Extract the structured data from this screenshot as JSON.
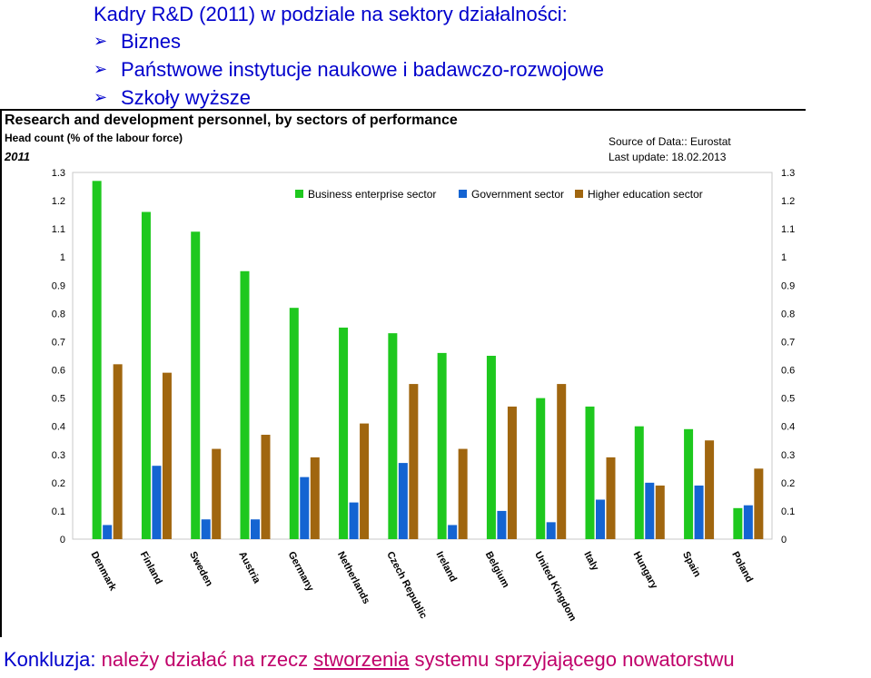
{
  "slide": {
    "title": "Kadry R&D (2011) w podziale na sektory działalności:",
    "bullets": [
      "Biznes",
      "Państwowe instytucje naukowe i badawczo-rozwojowe",
      "Szkoły wyższe"
    ],
    "conclusion_prefix": "Konkluzja: ",
    "conclusion_mid": "należy działać na rzecz ",
    "conclusion_underlined": "stworzenia",
    "conclusion_end": " systemu sprzyjającego nowatorstwu"
  },
  "figure": {
    "title": "Research and development personnel, by sectors of performance",
    "subtitle": "Head count (% of the labour force)",
    "year": "2011",
    "source_line1": "Source of Data:: Eurostat",
    "source_line2": "Last update: 18.02.2013"
  },
  "chart_data": {
    "type": "bar",
    "categories": [
      "Denmark",
      "Finland",
      "Sweden",
      "Austria",
      "Germany",
      "Netherlands",
      "Czech Republic",
      "Ireland",
      "Belgium",
      "United Kingdom",
      "Italy",
      "Hungary",
      "Spain",
      "Poland"
    ],
    "series": [
      {
        "name": "Business enterprise sector",
        "color": "#1ec81e",
        "values": [
          1.27,
          1.16,
          1.09,
          0.95,
          0.82,
          0.75,
          0.73,
          0.66,
          0.65,
          0.5,
          0.47,
          0.4,
          0.39,
          0.11
        ]
      },
      {
        "name": "Government sector",
        "color": "#1464d2",
        "values": [
          0.05,
          0.26,
          0.07,
          0.07,
          0.22,
          0.13,
          0.27,
          0.05,
          0.1,
          0.06,
          0.14,
          0.2,
          0.19,
          0.12
        ]
      },
      {
        "name": "Higher education sector",
        "color": "#a0660f",
        "values": [
          0.62,
          0.59,
          0.32,
          0.37,
          0.29,
          0.41,
          0.55,
          0.32,
          0.47,
          0.55,
          0.29,
          0.19,
          0.35,
          0.25
        ]
      }
    ],
    "yticks": [
      "0",
      "0.1",
      "0.2",
      "0.3",
      "0.4",
      "0.5",
      "0.6",
      "0.7",
      "0.8",
      "0.9",
      "1",
      "1.1",
      "1.2",
      "1.3"
    ],
    "ylim": [
      0,
      1.3
    ],
    "legend_position": "top",
    "grid": false
  }
}
